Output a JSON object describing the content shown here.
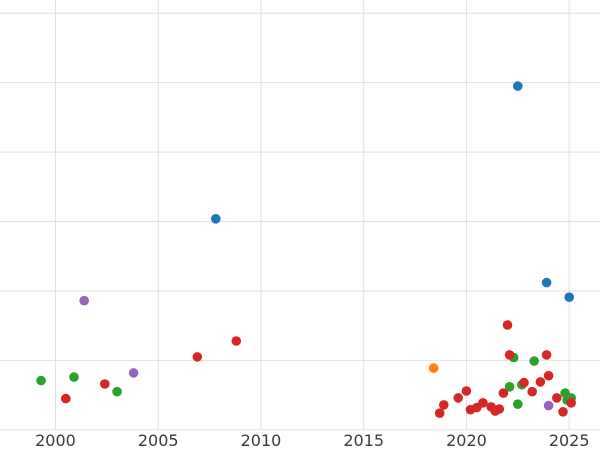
{
  "chart_data": {
    "type": "scatter",
    "title": "",
    "xlabel": "",
    "ylabel": "",
    "grid": true,
    "legend": "none",
    "xlim": [
      1997.3,
      2026.5
    ],
    "ylim": [
      -0.29,
      6.19
    ],
    "x_ticks": [
      2000,
      2005,
      2010,
      2015,
      2020,
      2025
    ],
    "x_tick_labels": [
      "2000",
      "2005",
      "2010",
      "2015",
      "2020",
      "2025"
    ],
    "y_gridlines": [
      0,
      1,
      2,
      3,
      4,
      5,
      6
    ],
    "series": [
      {
        "name": "blue-series",
        "color": "#1f77b4",
        "points": [
          [
            2022.5,
            4.95
          ],
          [
            2007.8,
            3.04
          ],
          [
            2023.9,
            2.12
          ],
          [
            2025.0,
            1.91
          ]
        ]
      },
      {
        "name": "orange-series",
        "color": "#ff7f0e",
        "points": [
          [
            2018.4,
            0.89
          ]
        ]
      },
      {
        "name": "green-series",
        "color": "#2ca02c",
        "points": [
          [
            1999.3,
            0.71
          ],
          [
            2000.9,
            0.76
          ],
          [
            2003.0,
            0.55
          ],
          [
            2022.1,
            0.62
          ],
          [
            2022.3,
            1.04
          ],
          [
            2022.5,
            0.37
          ],
          [
            2022.7,
            0.65
          ],
          [
            2023.3,
            0.99
          ],
          [
            2024.8,
            0.53
          ],
          [
            2024.9,
            0.43
          ],
          [
            2025.1,
            0.46
          ]
        ]
      },
      {
        "name": "red-series",
        "color": "#d62728",
        "points": [
          [
            2000.5,
            0.45
          ],
          [
            2002.4,
            0.66
          ],
          [
            2006.9,
            1.05
          ],
          [
            2008.8,
            1.28
          ],
          [
            2018.7,
            0.24
          ],
          [
            2018.9,
            0.36
          ],
          [
            2019.6,
            0.46
          ],
          [
            2020.0,
            0.56
          ],
          [
            2020.2,
            0.29
          ],
          [
            2020.5,
            0.32
          ],
          [
            2020.8,
            0.39
          ],
          [
            2021.2,
            0.33
          ],
          [
            2021.4,
            0.27
          ],
          [
            2021.6,
            0.3
          ],
          [
            2021.8,
            0.53
          ],
          [
            2022.0,
            1.51
          ],
          [
            2022.1,
            1.08
          ],
          [
            2022.8,
            0.68
          ],
          [
            2023.2,
            0.55
          ],
          [
            2023.6,
            0.69
          ],
          [
            2023.9,
            1.08
          ],
          [
            2024.0,
            0.78
          ],
          [
            2024.4,
            0.46
          ],
          [
            2024.7,
            0.26
          ],
          [
            2025.1,
            0.39
          ]
        ]
      },
      {
        "name": "purple-series",
        "color": "#9467bd",
        "points": [
          [
            2001.4,
            1.86
          ],
          [
            2003.8,
            0.82
          ],
          [
            2024.0,
            0.35
          ]
        ]
      }
    ]
  },
  "style": {
    "background_color": "#ffffff",
    "grid_color": "#e0e0e0",
    "tick_label_color": "#3b3b3b",
    "marker_radius": 4.8
  }
}
